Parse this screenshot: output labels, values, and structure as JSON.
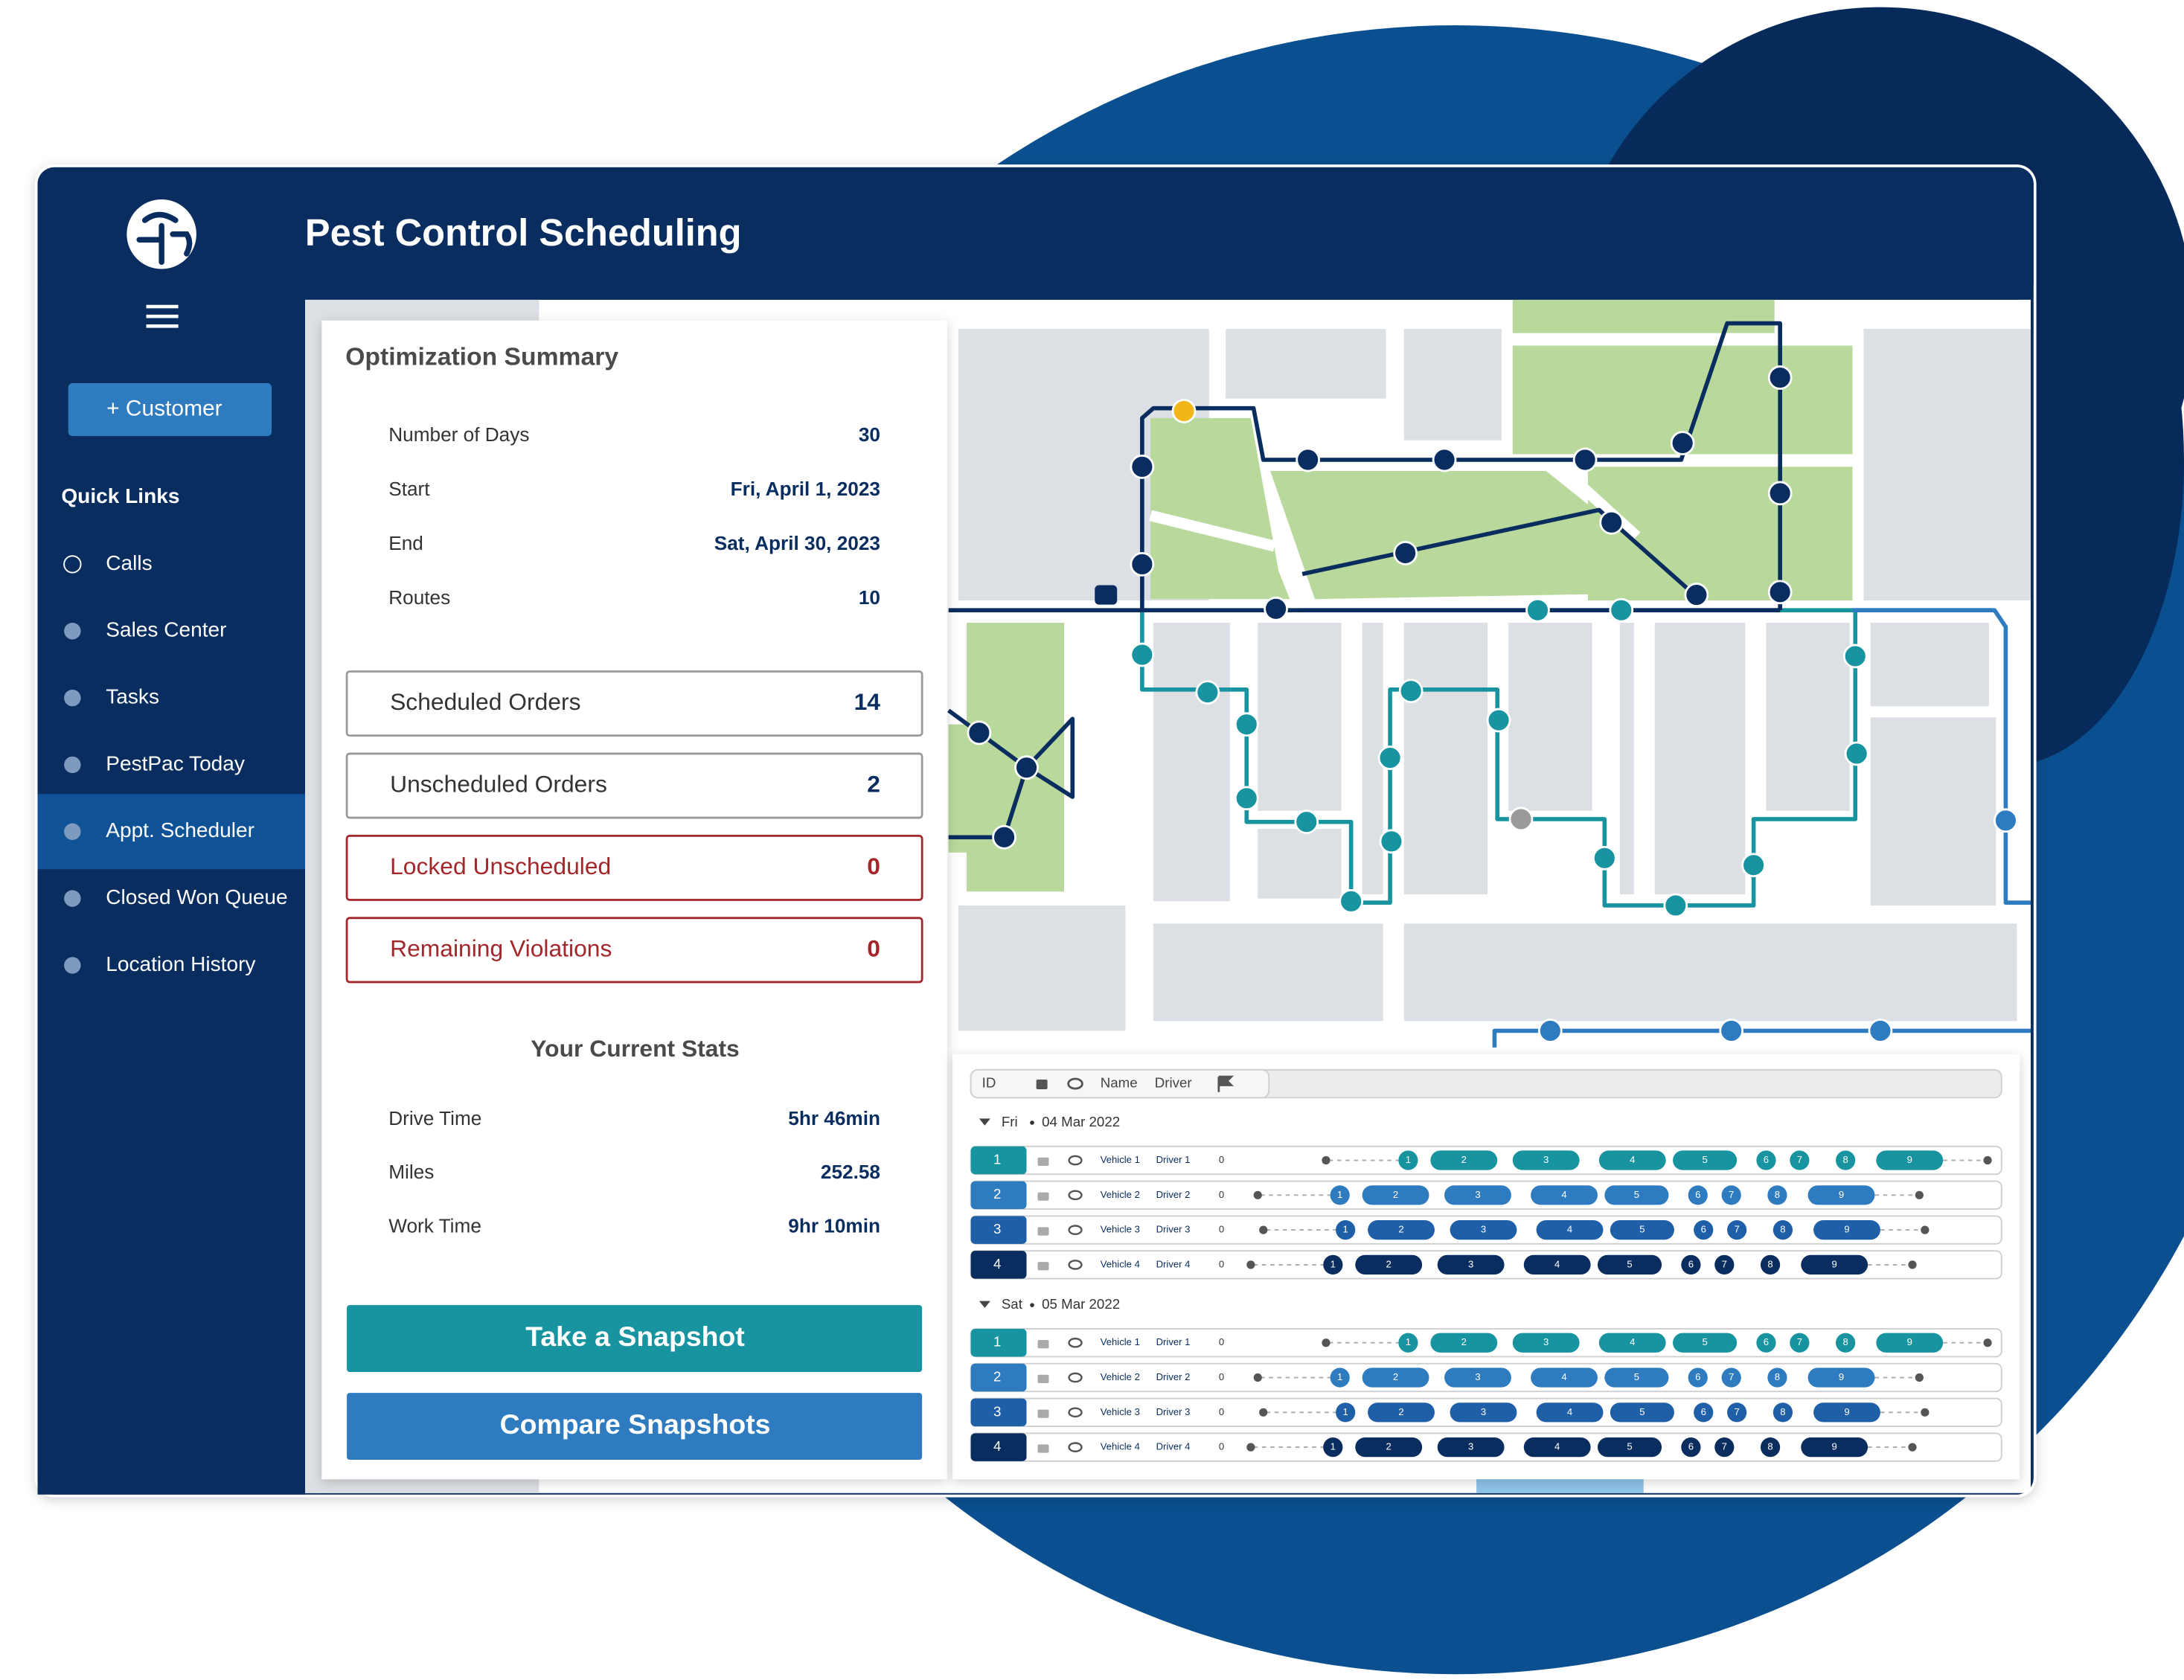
{
  "header": {
    "title": "Pest Control Scheduling"
  },
  "sidebar": {
    "button": "+ Customer",
    "section": "Quick Links",
    "links": [
      "Calls",
      "Sales Center",
      "Tasks",
      "PestPac Today",
      "Appt. Scheduler",
      "Closed Won Queue",
      "Location History"
    ]
  },
  "summary": {
    "title": "Optimization Summary",
    "rows": [
      [
        "Number of Days",
        "30"
      ],
      [
        "Start",
        "Fri, April 1, 2023"
      ],
      [
        "End",
        "Sat, April 30, 2023"
      ],
      [
        "Routes",
        "10"
      ]
    ],
    "counters": [
      [
        "Scheduled Orders",
        "14"
      ],
      [
        "Unscheduled Orders",
        "2"
      ],
      [
        "Locked Unscheduled",
        "0"
      ],
      [
        "Remaining Violations",
        "0"
      ]
    ],
    "stats_title": "Your Current Stats",
    "stats": [
      [
        "Drive Time",
        "5hr 46min"
      ],
      [
        "Miles",
        "252.58"
      ],
      [
        "Work Time",
        "9hr 10min"
      ]
    ],
    "buttons": [
      "Take a Snapshot",
      "Compare Snapshots"
    ]
  },
  "schedule": {
    "columns": [
      "ID",
      "Name",
      "Driver"
    ],
    "days": [
      {
        "day": "Fri",
        "date": "04 Mar 2022",
        "rows": [
          {
            "id": "1",
            "vehicle": "Vehicle 1",
            "driver": "Driver 1",
            "count": "0",
            "stops": [
              "1",
              "2",
              "3",
              "4",
              "5",
              "6",
              "7",
              "8",
              "9"
            ]
          },
          {
            "id": "2",
            "vehicle": "Vehicle 2",
            "driver": "Driver 2",
            "count": "0",
            "stops": [
              "1",
              "2",
              "3",
              "4",
              "5",
              "6",
              "7",
              "8",
              "9"
            ]
          },
          {
            "id": "3",
            "vehicle": "Vehicle 3",
            "driver": "Driver 3",
            "count": "0",
            "stops": [
              "1",
              "2",
              "3",
              "4",
              "5",
              "6",
              "7",
              "8",
              "9"
            ]
          },
          {
            "id": "4",
            "vehicle": "Vehicle 4",
            "driver": "Driver 4",
            "count": "0",
            "stops": [
              "1",
              "2",
              "3",
              "4",
              "5",
              "6",
              "7",
              "8",
              "9"
            ]
          }
        ]
      },
      {
        "day": "Sat",
        "date": "05 Mar 2022",
        "rows": [
          {
            "id": "1",
            "vehicle": "Vehicle 1",
            "driver": "Driver 1",
            "count": "0",
            "stops": [
              "1",
              "2",
              "3",
              "4",
              "5",
              "6",
              "7",
              "8",
              "9"
            ]
          },
          {
            "id": "2",
            "vehicle": "Vehicle 2",
            "driver": "Driver 2",
            "count": "0",
            "stops": [
              "1",
              "2",
              "3",
              "4",
              "5",
              "6",
              "7",
              "8",
              "9"
            ]
          },
          {
            "id": "3",
            "vehicle": "Vehicle 3",
            "driver": "Driver 3",
            "count": "0",
            "stops": [
              "1",
              "2",
              "3",
              "4",
              "5",
              "6",
              "7",
              "8",
              "9"
            ]
          },
          {
            "id": "4",
            "vehicle": "Vehicle 4",
            "driver": "Driver 4",
            "count": "0",
            "stops": [
              "1",
              "2",
              "3",
              "4",
              "5",
              "6",
              "7",
              "8",
              "9"
            ]
          }
        ]
      }
    ]
  }
}
